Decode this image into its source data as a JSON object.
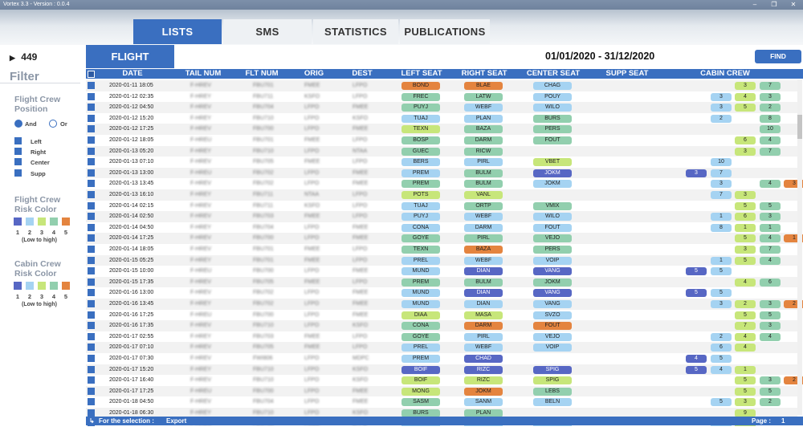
{
  "window": {
    "title": "Vortex 3.3 - Version : 0.0.4",
    "controls": [
      "–",
      "❐",
      "✕"
    ]
  },
  "tabs": [
    {
      "label": "LISTS",
      "active": true
    },
    {
      "label": "SMS",
      "active": false
    },
    {
      "label": "STATISTICS",
      "active": false
    },
    {
      "label": "PUBLICATIONS",
      "active": false
    }
  ],
  "sidebar": {
    "count": "449",
    "filter_title": "Filter",
    "flight_crew_position": {
      "title_line1": "Flight Crew",
      "title_line2": "Position",
      "and_label": "And",
      "or_label": "Or",
      "options": [
        "Left",
        "Right",
        "Center",
        "Supp"
      ]
    },
    "flight_crew_risk": {
      "title_line1": "Flight Crew",
      "title_line2": "Risk Color",
      "levels": [
        "1",
        "2",
        "3",
        "4",
        "5"
      ],
      "range_label": "(Low to high)"
    },
    "cabin_crew_risk": {
      "title_line1": "Cabin Crew",
      "title_line2": "Risk Color",
      "levels": [
        "1",
        "2",
        "3",
        "4",
        "5"
      ],
      "range_label": "(Low to high)"
    }
  },
  "risk_colors": {
    "1": "#5767c4",
    "2": "#a5d3f2",
    "3": "#c7e67a",
    "4": "#92cfae",
    "5": "#e4843f"
  },
  "toolbar": {
    "flight_button": "FLIGHT",
    "date_range": "01/01/2020 - 31/12/2020",
    "find_button": "FIND"
  },
  "table": {
    "columns": [
      "DATE",
      "TAIL NUM",
      "FLT NUM",
      "ORIG",
      "DEST",
      "LEFT SEAT",
      "RIGHT SEAT",
      "CENTER SEAT",
      "SUPP SEAT",
      "CABIN CREW"
    ],
    "rows": [
      {
        "date": "2020-01-11 18:05",
        "tail": "F-HREV",
        "flt": "FBU701",
        "orig": "FMEE",
        "dest": "LFPO",
        "left": [
          "BOND",
          5
        ],
        "right": [
          "BLAE",
          5
        ],
        "center": [
          "CHAG",
          2
        ],
        "supp": null,
        "cabin": [
          null,
          null,
          null,
          [
            "3",
            3
          ],
          [
            "7",
            4
          ],
          null
        ]
      },
      {
        "date": "2020-01-12 02:35",
        "tail": "F-HREY",
        "flt": "FBU711",
        "orig": "KSFO",
        "dest": "LFPO",
        "left": [
          "FREC",
          4
        ],
        "right": [
          "LATW",
          4
        ],
        "center": [
          "POUY",
          2
        ],
        "supp": null,
        "cabin": [
          null,
          null,
          [
            "3",
            2
          ],
          [
            "4",
            3
          ],
          [
            "3",
            4
          ],
          null
        ]
      },
      {
        "date": "2020-01-12 04:50",
        "tail": "F-HREV",
        "flt": "FBU704",
        "orig": "LFPO",
        "dest": "FMEE",
        "left": [
          "PUYJ",
          4
        ],
        "right": [
          "WEBF",
          2
        ],
        "center": [
          "WILO",
          2
        ],
        "supp": null,
        "cabin": [
          null,
          null,
          [
            "3",
            2
          ],
          [
            "5",
            3
          ],
          [
            "2",
            4
          ],
          null
        ]
      },
      {
        "date": "2020-01-12 15:20",
        "tail": "F-HREY",
        "flt": "FBU710",
        "orig": "LFPO",
        "dest": "KSFO",
        "left": [
          "TUAJ",
          2
        ],
        "right": [
          "PLAN",
          2
        ],
        "center": [
          "BURS",
          4
        ],
        "supp": null,
        "cabin": [
          null,
          null,
          [
            "2",
            2
          ],
          null,
          [
            "8",
            4
          ],
          null
        ]
      },
      {
        "date": "2020-01-12 17:25",
        "tail": "F-HREV",
        "flt": "FBU700",
        "orig": "LFPO",
        "dest": "FMEE",
        "left": [
          "TEXN",
          3
        ],
        "right": [
          "BAZA",
          4
        ],
        "center": [
          "PERS",
          4
        ],
        "supp": null,
        "cabin": [
          null,
          null,
          null,
          null,
          [
            "10",
            4
          ],
          null
        ]
      },
      {
        "date": "2020-01-12 18:05",
        "tail": "F-HREU",
        "flt": "FBU701",
        "orig": "FMEE",
        "dest": "LFPO",
        "left": [
          "BOSP",
          4
        ],
        "right": [
          "DARM",
          4
        ],
        "center": [
          "FOUT",
          4
        ],
        "supp": null,
        "cabin": [
          null,
          null,
          null,
          [
            "6",
            3
          ],
          [
            "4",
            4
          ],
          null
        ]
      },
      {
        "date": "2020-01-13 05:20",
        "tail": "F-HREY",
        "flt": "FBU710",
        "orig": "LFPO",
        "dest": "NTAA",
        "left": [
          "GUEC",
          4
        ],
        "right": [
          "RICW",
          4
        ],
        "center": null,
        "supp": null,
        "cabin": [
          null,
          null,
          null,
          [
            "3",
            3
          ],
          [
            "7",
            4
          ],
          null
        ]
      },
      {
        "date": "2020-01-13 07:10",
        "tail": "F-HREV",
        "flt": "FBU705",
        "orig": "FMEE",
        "dest": "LFPO",
        "left": [
          "BERS",
          2
        ],
        "right": [
          "PIRL",
          2
        ],
        "center": [
          "VBET",
          3
        ],
        "supp": null,
        "cabin": [
          null,
          null,
          [
            "10",
            2
          ],
          null,
          null,
          null
        ]
      },
      {
        "date": "2020-01-13 13:00",
        "tail": "F-HREU",
        "flt": "FBU702",
        "orig": "LFPO",
        "dest": "FMEE",
        "left": [
          "PREM",
          2
        ],
        "right": [
          "BULM",
          4
        ],
        "center": [
          "JOKM",
          1
        ],
        "supp": null,
        "cabin": [
          null,
          [
            "3",
            1
          ],
          [
            "7",
            2
          ],
          null,
          null,
          null
        ]
      },
      {
        "date": "2020-01-13 13:45",
        "tail": "F-HREV",
        "flt": "FBU702",
        "orig": "LFPO",
        "dest": "FMEE",
        "left": [
          "PREM",
          4
        ],
        "right": [
          "BULM",
          4
        ],
        "center": [
          "JOKM",
          2
        ],
        "supp": null,
        "cabin": [
          null,
          null,
          [
            "3",
            2
          ],
          null,
          [
            "4",
            4
          ],
          [
            "3",
            5
          ]
        ]
      },
      {
        "date": "2020-01-13 16:10",
        "tail": "F-HREY",
        "flt": "FBU711",
        "orig": "NTAA",
        "dest": "LFPO",
        "left": [
          "POTS",
          3
        ],
        "right": [
          "VANL",
          3
        ],
        "center": null,
        "supp": null,
        "cabin": [
          null,
          null,
          [
            "7",
            2
          ],
          [
            "3",
            3
          ],
          null,
          null
        ]
      },
      {
        "date": "2020-01-14 02:15",
        "tail": "F-HREV",
        "flt": "FBU711",
        "orig": "KSFO",
        "dest": "LFPO",
        "left": [
          "TUAJ",
          2
        ],
        "right": [
          "ORTP",
          4
        ],
        "center": [
          "VMIX",
          4
        ],
        "supp": null,
        "cabin": [
          null,
          null,
          null,
          [
            "5",
            3
          ],
          [
            "5",
            4
          ],
          null
        ]
      },
      {
        "date": "2020-01-14 02:50",
        "tail": "F-HREV",
        "flt": "FBU703",
        "orig": "FMEE",
        "dest": "LFPO",
        "left": [
          "PUYJ",
          2
        ],
        "right": [
          "WEBF",
          2
        ],
        "center": [
          "WILO",
          2
        ],
        "supp": null,
        "cabin": [
          null,
          null,
          [
            "1",
            2
          ],
          [
            "6",
            3
          ],
          [
            "3",
            4
          ],
          null
        ]
      },
      {
        "date": "2020-01-14 04:50",
        "tail": "F-HREY",
        "flt": "FBU704",
        "orig": "LFPO",
        "dest": "FMEE",
        "left": [
          "CONA",
          2
        ],
        "right": [
          "DARM",
          2
        ],
        "center": [
          "FOUT",
          2
        ],
        "supp": null,
        "cabin": [
          null,
          null,
          [
            "8",
            2
          ],
          [
            "1",
            3
          ],
          [
            "1",
            4
          ],
          null
        ]
      },
      {
        "date": "2020-01-14 17:25",
        "tail": "F-HREV",
        "flt": "FBU700",
        "orig": "LFPO",
        "dest": "FMEE",
        "left": [
          "GOYE",
          4
        ],
        "right": [
          "PIRL",
          4
        ],
        "center": [
          "VEJO",
          4
        ],
        "supp": null,
        "cabin": [
          null,
          null,
          null,
          [
            "5",
            3
          ],
          [
            "4",
            4
          ],
          [
            "1",
            5
          ]
        ]
      },
      {
        "date": "2020-01-14 18:05",
        "tail": "F-HREV",
        "flt": "FBU701",
        "orig": "FMEE",
        "dest": "LFPO",
        "left": [
          "TEXN",
          4
        ],
        "right": [
          "BAZA",
          5
        ],
        "center": [
          "PERS",
          4
        ],
        "supp": null,
        "cabin": [
          null,
          null,
          null,
          [
            "3",
            3
          ],
          [
            "7",
            4
          ],
          null
        ]
      },
      {
        "date": "2020-01-15 05:25",
        "tail": "F-HREY",
        "flt": "FBU701",
        "orig": "FMEE",
        "dest": "LFPO",
        "left": [
          "PREL",
          2
        ],
        "right": [
          "WEBF",
          2
        ],
        "center": [
          "VOIP",
          2
        ],
        "supp": null,
        "cabin": [
          null,
          null,
          [
            "1",
            2
          ],
          [
            "5",
            3
          ],
          [
            "4",
            4
          ],
          null
        ]
      },
      {
        "date": "2020-01-15 10:00",
        "tail": "F-HREU",
        "flt": "FBU700",
        "orig": "LFPO",
        "dest": "FMEE",
        "left": [
          "MUND",
          2
        ],
        "right": [
          "DIAN",
          1
        ],
        "center": [
          "VANG",
          1
        ],
        "supp": null,
        "cabin": [
          null,
          [
            "5",
            1
          ],
          [
            "5",
            2
          ],
          null,
          null,
          null
        ]
      },
      {
        "date": "2020-01-15 17:35",
        "tail": "F-HREV",
        "flt": "FBU705",
        "orig": "FMEE",
        "dest": "LFPO",
        "left": [
          "PREM",
          4
        ],
        "right": [
          "BULM",
          4
        ],
        "center": [
          "JOKM",
          4
        ],
        "supp": null,
        "cabin": [
          null,
          null,
          null,
          [
            "4",
            3
          ],
          [
            "6",
            4
          ],
          null
        ]
      },
      {
        "date": "2020-01-16 13:00",
        "tail": "F-HREV",
        "flt": "FBU702",
        "orig": "LFPO",
        "dest": "FMEE",
        "left": [
          "MUND",
          2
        ],
        "right": [
          "DIAN",
          1
        ],
        "center": [
          "VANG",
          1
        ],
        "supp": null,
        "cabin": [
          null,
          [
            "5",
            1
          ],
          [
            "5",
            2
          ],
          null,
          null,
          null
        ]
      },
      {
        "date": "2020-01-16 13:45",
        "tail": "F-HREY",
        "flt": "FBU702",
        "orig": "LFPO",
        "dest": "FMEE",
        "left": [
          "MUND",
          2
        ],
        "right": [
          "DIAN",
          2
        ],
        "center": [
          "VANG",
          2
        ],
        "supp": null,
        "cabin": [
          null,
          null,
          [
            "3",
            2
          ],
          [
            "2",
            3
          ],
          [
            "3",
            4
          ],
          [
            "2",
            5
          ]
        ]
      },
      {
        "date": "2020-01-16 17:25",
        "tail": "F-HREU",
        "flt": "FBU700",
        "orig": "LFPO",
        "dest": "FMEE",
        "left": [
          "DIAA",
          3
        ],
        "right": [
          "MASA",
          3
        ],
        "center": [
          "SVZO",
          2
        ],
        "supp": null,
        "cabin": [
          null,
          null,
          null,
          [
            "5",
            3
          ],
          [
            "5",
            4
          ],
          null
        ]
      },
      {
        "date": "2020-01-16 17:35",
        "tail": "F-HREV",
        "flt": "FBU710",
        "orig": "LFPO",
        "dest": "KSFO",
        "left": [
          "CONA",
          4
        ],
        "right": [
          "DARM",
          5
        ],
        "center": [
          "FOUT",
          5
        ],
        "supp": null,
        "cabin": [
          null,
          null,
          null,
          [
            "7",
            3
          ],
          [
            "3",
            4
          ],
          null
        ]
      },
      {
        "date": "2020-01-17 02:55",
        "tail": "F-HREY",
        "flt": "FBU703",
        "orig": "FMEE",
        "dest": "LFPO",
        "left": [
          "GOYE",
          4
        ],
        "right": [
          "PIRL",
          2
        ],
        "center": [
          "VEJO",
          2
        ],
        "supp": null,
        "cabin": [
          null,
          null,
          [
            "2",
            2
          ],
          [
            "4",
            3
          ],
          [
            "4",
            4
          ],
          null
        ]
      },
      {
        "date": "2020-01-17 07:10",
        "tail": "F-HREV",
        "flt": "FBU705",
        "orig": "FMEE",
        "dest": "LFPO",
        "left": [
          "PREL",
          2
        ],
        "right": [
          "WEBF",
          2
        ],
        "center": [
          "VOIP",
          2
        ],
        "supp": null,
        "cabin": [
          null,
          null,
          [
            "6",
            2
          ],
          [
            "4",
            3
          ],
          null,
          null
        ]
      },
      {
        "date": "2020-01-17 07:30",
        "tail": "F-HREV",
        "flt": "FWI806",
        "orig": "LFPO",
        "dest": "MDPC",
        "left": [
          "PREM",
          2
        ],
        "right": [
          "CHAD",
          1
        ],
        "center": null,
        "supp": null,
        "cabin": [
          null,
          [
            "4",
            1
          ],
          [
            "5",
            2
          ],
          null,
          null,
          null
        ]
      },
      {
        "date": "2020-01-17 15:20",
        "tail": "F-HREY",
        "flt": "FBU710",
        "orig": "LFPO",
        "dest": "KSFO",
        "left": [
          "BOIF",
          1
        ],
        "right": [
          "RIZC",
          1
        ],
        "center": [
          "SPIG",
          1
        ],
        "supp": null,
        "cabin": [
          null,
          [
            "5",
            1
          ],
          [
            "4",
            2
          ],
          [
            "1",
            3
          ],
          null,
          null
        ]
      },
      {
        "date": "2020-01-17 16:40",
        "tail": "F-HREV",
        "flt": "FBU710",
        "orig": "LFPO",
        "dest": "KSFO",
        "left": [
          "BOIF",
          3
        ],
        "right": [
          "RIZC",
          3
        ],
        "center": [
          "SPIG",
          3
        ],
        "supp": null,
        "cabin": [
          null,
          null,
          null,
          [
            "5",
            3
          ],
          [
            "3",
            4
          ],
          [
            "2",
            5
          ]
        ]
      },
      {
        "date": "2020-01-17 17:25",
        "tail": "F-HREU",
        "flt": "FBU700",
        "orig": "LFPO",
        "dest": "FMEE",
        "left": [
          "MONG",
          3
        ],
        "right": [
          "JOKM",
          5
        ],
        "center": [
          "LEBS",
          4
        ],
        "supp": null,
        "cabin": [
          null,
          null,
          null,
          [
            "5",
            3
          ],
          [
            "5",
            4
          ],
          null
        ]
      },
      {
        "date": "2020-01-18 04:50",
        "tail": "F-HREV",
        "flt": "FBU704",
        "orig": "LFPO",
        "dest": "FMEE",
        "left": [
          "SASM",
          4
        ],
        "right": [
          "SANM",
          2
        ],
        "center": [
          "BELN",
          2
        ],
        "supp": null,
        "cabin": [
          null,
          null,
          [
            "5",
            2
          ],
          [
            "3",
            3
          ],
          [
            "2",
            4
          ],
          null
        ]
      },
      {
        "date": "2020-01-18 06:30",
        "tail": "F-HREY",
        "flt": "FBU710",
        "orig": "LFPO",
        "dest": "KSFO",
        "left": [
          "BURS",
          4
        ],
        "right": [
          "PLAN",
          4
        ],
        "center": null,
        "supp": null,
        "cabin": [
          null,
          null,
          null,
          [
            "9",
            3
          ],
          null,
          null
        ]
      },
      {
        "date": "2020-01-18 07:10",
        "tail": "F-HREU",
        "flt": "FBU705",
        "orig": "FMEE",
        "dest": "LFPO",
        "left": [
          "MUND",
          2
        ],
        "right": [
          "DIAN",
          2
        ],
        "center": [
          "VANG",
          2
        ],
        "supp": null,
        "cabin": [
          null,
          null,
          [
            "9",
            2
          ],
          [
            "1",
            3
          ],
          null,
          null
        ]
      }
    ]
  },
  "footer": {
    "selection_label": "For the selection :",
    "export_label": "Export",
    "page_label": "Page :",
    "page_number": "1"
  }
}
